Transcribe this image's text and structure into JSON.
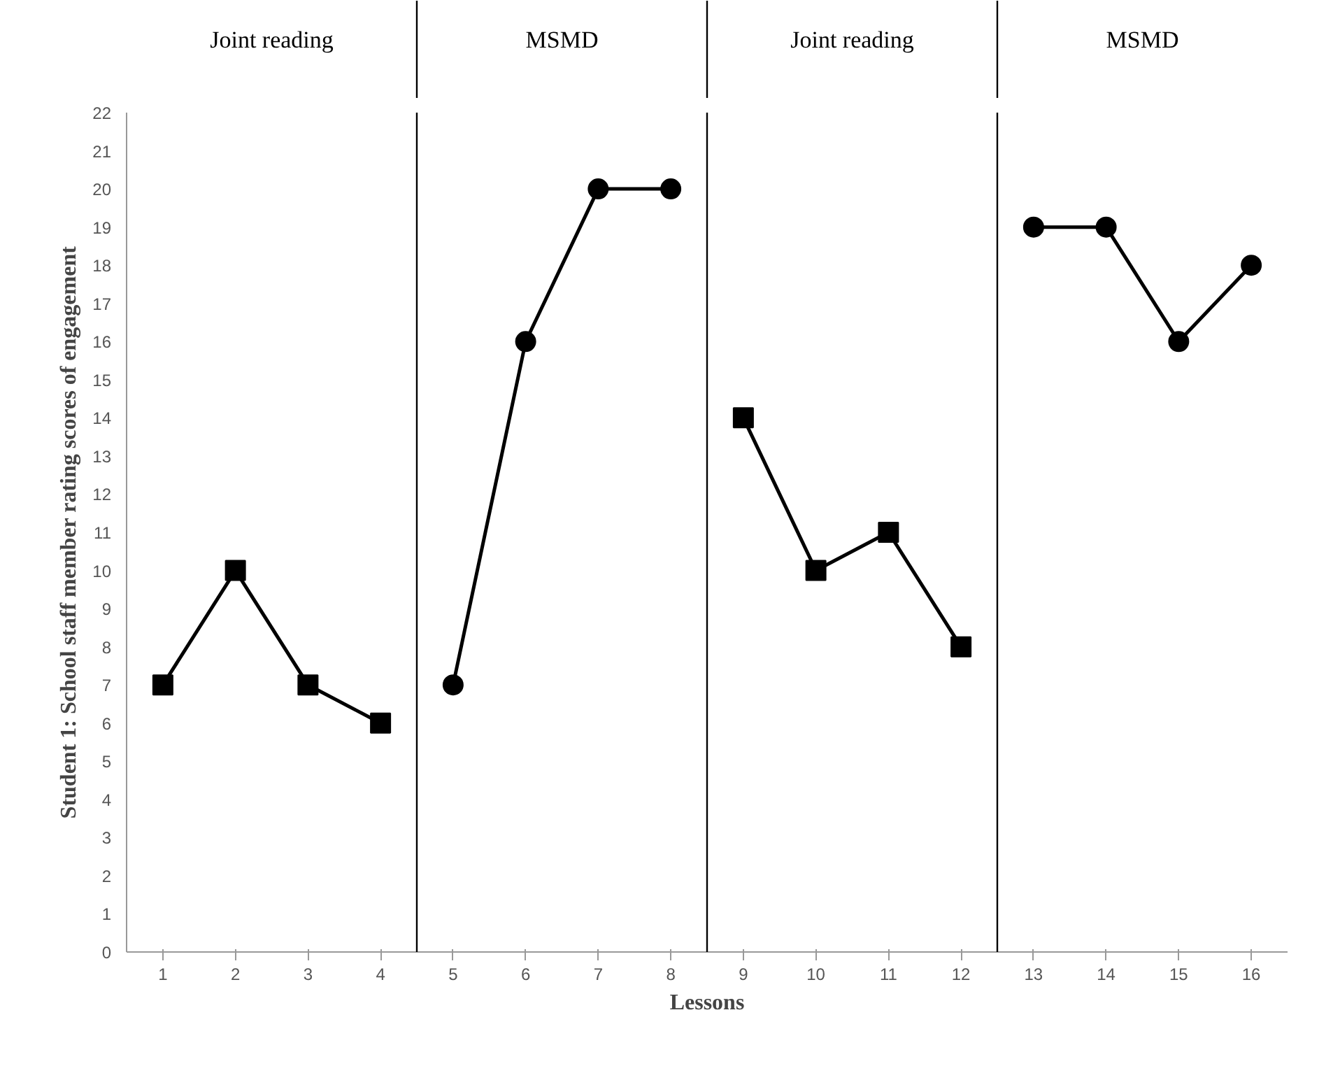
{
  "chart_data": {
    "type": "line",
    "xlabel": "Lessons",
    "ylabel": "Student 1: School staff member rating scores of engagement",
    "xlim": [
      0.5,
      16.5
    ],
    "xticks": [
      1,
      2,
      3,
      4,
      5,
      6,
      7,
      8,
      9,
      10,
      11,
      12,
      13,
      14,
      15,
      16
    ],
    "ylim": [
      0,
      22
    ],
    "yticks": [
      0,
      1,
      2,
      3,
      4,
      5,
      6,
      7,
      8,
      9,
      10,
      11,
      12,
      13,
      14,
      15,
      16,
      17,
      18,
      19,
      20,
      21,
      22
    ],
    "grid": false,
    "series": [
      {
        "color": "#000000",
        "marker": "square",
        "x": [
          1,
          2,
          3,
          4
        ],
        "values": [
          7,
          10,
          7,
          6
        ]
      },
      {
        "color": "#000000",
        "marker": "circle",
        "x": [
          5,
          6,
          7,
          8
        ],
        "values": [
          7,
          16,
          20,
          20
        ]
      },
      {
        "color": "#000000",
        "marker": "square",
        "x": [
          9,
          10,
          11,
          12
        ],
        "values": [
          14,
          10,
          11,
          8
        ]
      },
      {
        "color": "#000000",
        "marker": "circle",
        "x": [
          13,
          14,
          15,
          16
        ],
        "values": [
          19,
          19,
          16,
          18
        ]
      }
    ],
    "annotations": [
      "Joint reading",
      "MSMD",
      "Joint reading",
      "MSMD"
    ],
    "ref_lines": [
      {
        "axis": "x",
        "value": 4.5,
        "color": "#000000"
      },
      {
        "axis": "x",
        "value": 8.5,
        "color": "#000000"
      },
      {
        "axis": "x",
        "value": 12.5,
        "color": "#000000"
      }
    ]
  }
}
